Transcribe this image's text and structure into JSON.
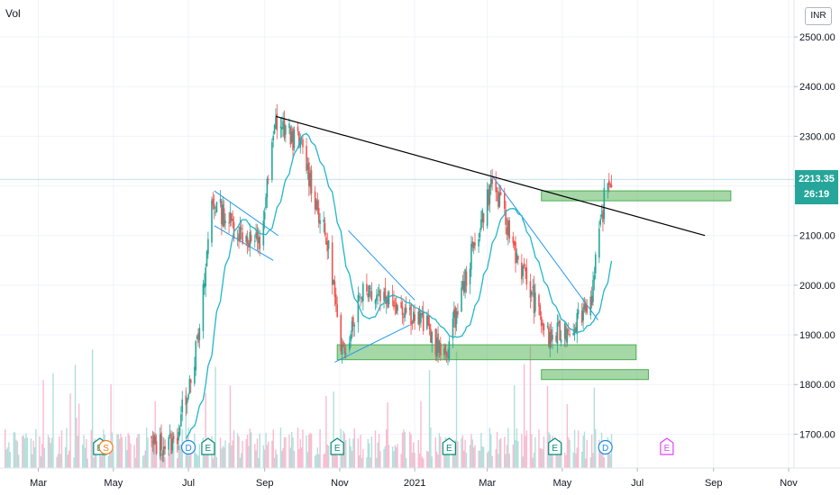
{
  "vol_label": "Vol",
  "currency_badge": "INR",
  "price_badge": {
    "price": "2213.35",
    "countdown": "26:19"
  },
  "colors": {
    "up": "#26a69a",
    "down": "#ef5350",
    "ma": "#21b6c9",
    "trendline": "#000000",
    "zone": "#4caf50",
    "pattern": "#2196f3"
  },
  "chart_data": {
    "type": "candlestick",
    "ylim": [
      1650,
      2520
    ],
    "y_ticks": [
      "2500.00",
      "2400.00",
      "2300.00",
      "2200.00",
      "2100.00",
      "2000.00",
      "1900.00",
      "1800.00",
      "1700.00"
    ],
    "x_ticks": [
      "Mar",
      "May",
      "Jul",
      "Sep",
      "Nov",
      "2021",
      "Mar",
      "May",
      "Jul",
      "Sep",
      "Nov"
    ],
    "price_key_points": [
      {
        "x": "2020-06-20",
        "y": 1680
      },
      {
        "x": "2020-07-10",
        "y": 1900
      },
      {
        "x": "2020-07-20",
        "y": 2170
      },
      {
        "x": "2020-08-10",
        "y": 2110
      },
      {
        "x": "2020-08-28",
        "y": 2080
      },
      {
        "x": "2020-09-10",
        "y": 2330
      },
      {
        "x": "2020-10-01",
        "y": 2280
      },
      {
        "x": "2020-10-25",
        "y": 2050
      },
      {
        "x": "2020-11-02",
        "y": 1850
      },
      {
        "x": "2020-11-20",
        "y": 2000
      },
      {
        "x": "2020-12-15",
        "y": 1970
      },
      {
        "x": "2021-01-10",
        "y": 1920
      },
      {
        "x": "2021-01-25",
        "y": 1850
      },
      {
        "x": "2021-02-15",
        "y": 2050
      },
      {
        "x": "2021-03-05",
        "y": 2210
      },
      {
        "x": "2021-03-25",
        "y": 2060
      },
      {
        "x": "2021-04-20",
        "y": 1890
      },
      {
        "x": "2021-05-10",
        "y": 1920
      },
      {
        "x": "2021-05-25",
        "y": 1980
      },
      {
        "x": "2021-06-05",
        "y": 2190
      },
      {
        "x": "2021-06-10",
        "y": 2213
      }
    ],
    "annotations": {
      "resistance_trendline": {
        "from": {
          "x": "2020-09-10",
          "y": 2340
        },
        "to": {
          "x": "2021-08-25",
          "y": 2100
        }
      },
      "support_zones": [
        {
          "x0": "2020-10-30",
          "x1": "2021-06-30",
          "y0": 1850,
          "y1": 1880
        },
        {
          "x0": "2021-04-14",
          "x1": "2021-07-10",
          "y0": 1810,
          "y1": 1830
        },
        {
          "x0": "2021-04-14",
          "x1": "2021-09-15",
          "y0": 2170,
          "y1": 2190
        }
      ]
    },
    "event_markers": [
      {
        "x": "2020-04-20",
        "label": "E"
      },
      {
        "x": "2020-04-25",
        "label": "S"
      },
      {
        "x": "2020-07-01",
        "label": "D"
      },
      {
        "x": "2020-07-17",
        "label": "E"
      },
      {
        "x": "2020-10-30",
        "label": "E"
      },
      {
        "x": "2021-01-29",
        "label": "E"
      },
      {
        "x": "2021-04-25",
        "label": "E"
      },
      {
        "x": "2021-06-05",
        "label": "D"
      },
      {
        "x": "2021-07-25",
        "label": "E"
      }
    ]
  }
}
